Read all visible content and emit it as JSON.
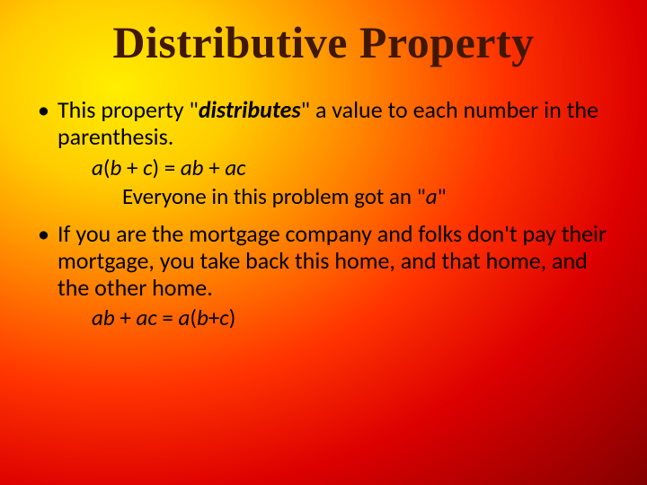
{
  "background": {
    "gradient_type": "radial",
    "center": "top-left",
    "stops": [
      "#ffee00",
      "#ffcc00",
      "#ff8800",
      "#ff3300",
      "#dd0000",
      "#990000",
      "#660000"
    ]
  },
  "title": {
    "text": "Distributive Property",
    "font_family": "Goudy Old Style",
    "font_size_pt": 40,
    "color": "#401800"
  },
  "body": {
    "font_family": "Calibri",
    "font_size_pt": 22,
    "color": "#000000",
    "bullets": [
      {
        "segments": [
          {
            "text": "This property \"",
            "style": "normal"
          },
          {
            "text": "distributes",
            "style": "bold-italic"
          },
          {
            "text": "\" a value to each number in the parenthesis.",
            "style": "normal"
          }
        ],
        "subs": [
          {
            "level": 1,
            "segments": [
              {
                "text": "a",
                "style": "italic"
              },
              {
                "text": "(",
                "style": "normal"
              },
              {
                "text": "b",
                "style": "italic"
              },
              {
                "text": " + ",
                "style": "normal"
              },
              {
                "text": "c",
                "style": "italic"
              },
              {
                "text": ") = ",
                "style": "normal"
              },
              {
                "text": "ab",
                "style": "italic"
              },
              {
                "text": " + ",
                "style": "normal"
              },
              {
                "text": "ac",
                "style": "italic"
              }
            ]
          },
          {
            "level": 2,
            "segments": [
              {
                "text": "Everyone in this problem got an \"",
                "style": "normal"
              },
              {
                "text": "a",
                "style": "italic"
              },
              {
                "text": "\"",
                "style": "normal"
              }
            ]
          }
        ]
      },
      {
        "segments": [
          {
            "text": "If you are the mortgage company and folks don't pay their mortgage, you take back this home, and that home, and the other home.",
            "style": "normal"
          }
        ],
        "subs": [
          {
            "level": 1,
            "segments": [
              {
                "text": "ab",
                "style": "italic"
              },
              {
                "text": " + ",
                "style": "normal"
              },
              {
                "text": "ac",
                "style": "italic"
              },
              {
                "text": " = ",
                "style": "normal"
              },
              {
                "text": "a",
                "style": "italic"
              },
              {
                "text": "(",
                "style": "normal"
              },
              {
                "text": "b",
                "style": "italic"
              },
              {
                "text": "+",
                "style": "normal"
              },
              {
                "text": "c",
                "style": "italic"
              },
              {
                "text": ")",
                "style": "normal"
              }
            ]
          }
        ]
      }
    ]
  }
}
